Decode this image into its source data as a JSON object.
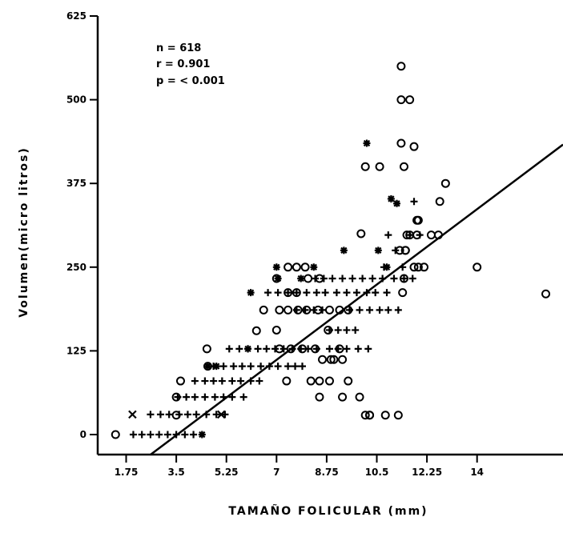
{
  "chart_data": {
    "type": "scatter",
    "title": "",
    "xlabel": "TAMAÑO FOLICULAR (mm)",
    "ylabel": "Volumen(micro litros)",
    "xlim": [
      1.4,
      17.0
    ],
    "ylim": [
      0,
      625
    ],
    "x_ticks": [
      {
        "value": 1.75,
        "label": "1.75"
      },
      {
        "value": 3.5,
        "label": "3.5"
      },
      {
        "value": 5.25,
        "label": "5.25"
      },
      {
        "value": 7,
        "label": "7"
      },
      {
        "value": 8.75,
        "label": "8.75"
      },
      {
        "value": 10.5,
        "label": "10.5"
      },
      {
        "value": 12.25,
        "label": "12.25"
      },
      {
        "value": 14,
        "label": "14"
      }
    ],
    "y_ticks": [
      {
        "value": 0,
        "label": "0"
      },
      {
        "value": 125,
        "label": "125"
      },
      {
        "value": 250,
        "label": "250"
      },
      {
        "value": 375,
        "label": "375"
      },
      {
        "value": 500,
        "label": "500"
      },
      {
        "value": 625,
        "label": "625"
      }
    ],
    "annotations": {
      "n": "n = 618",
      "r": "r = 0.901",
      "p": "p = < 0.001"
    },
    "regression_line": {
      "x": [
        2.6,
        17.0
      ],
      "y": [
        -30,
        433
      ]
    },
    "grid": false,
    "series": [
      {
        "marker": "o",
        "x": [
          1.38,
          3.5,
          3.5,
          3.65,
          4.6,
          4.57,
          6.3,
          6.55,
          7.1,
          7.4,
          7.75,
          8.05,
          8.45,
          8.85,
          9.2,
          9.5,
          7.4,
          7.7,
          8.5,
          8.1,
          7.0,
          7.4,
          7.7,
          8.0,
          7.0,
          8.8,
          7.1,
          7.5,
          7.9,
          8.35,
          9.2,
          8.6,
          8.9,
          9.0,
          9.3,
          7.35,
          8.2,
          8.5,
          8.85,
          9.5,
          8.5,
          9.3,
          9.9,
          10.1,
          10.25,
          10.25,
          10.8,
          11.25,
          11.4,
          11.45,
          11.8,
          11.95,
          12.15,
          11.3,
          11.5,
          11.5,
          11.55,
          11.65,
          11.9,
          11.9,
          11.95,
          12.4,
          12.65,
          12.7,
          12.9,
          14.0,
          16.4,
          11.35,
          11.35,
          11.65,
          11.8,
          10.1,
          10.6,
          11.45,
          11.35,
          9.95
        ],
        "y": [
          0,
          29,
          56,
          80,
          102,
          128,
          155,
          186,
          186,
          186,
          186,
          186,
          186,
          186,
          186,
          186,
          212,
          212,
          233,
          233,
          233,
          250,
          250,
          250,
          156,
          156,
          128,
          128,
          128,
          128,
          128,
          112,
          112,
          112,
          112,
          80,
          80,
          80,
          80,
          80,
          56,
          56,
          56,
          29,
          29,
          29,
          29,
          29,
          212,
          233,
          250,
          250,
          250,
          275,
          275,
          275,
          298,
          298,
          298,
          320,
          320,
          298,
          298,
          348,
          375,
          250,
          210,
          550,
          500,
          500,
          430,
          400,
          400,
          400,
          435,
          300
        ]
      },
      {
        "marker": "+",
        "x": [
          2.0,
          2.3,
          2.6,
          2.9,
          3.2,
          3.5,
          3.8,
          4.1,
          2.6,
          2.95,
          3.25,
          3.6,
          3.9,
          4.2,
          4.55,
          4.9,
          5.2,
          3.55,
          3.85,
          4.15,
          4.5,
          4.85,
          5.15,
          5.45,
          5.85,
          4.15,
          4.5,
          4.8,
          5.1,
          5.45,
          5.75,
          6.1,
          6.4,
          4.8,
          5.15,
          5.5,
          5.8,
          6.1,
          6.45,
          6.75,
          7.05,
          7.4,
          7.65,
          7.9,
          5.35,
          5.7,
          6.0,
          6.35,
          6.65,
          6.95,
          7.25,
          7.55,
          7.85,
          8.1,
          8.4,
          8.85,
          9.15,
          9.45,
          9.85,
          10.2,
          8.85,
          9.15,
          9.45,
          9.75,
          7.7,
          8.0,
          8.3,
          8.6,
          9.55,
          9.9,
          10.25,
          10.6,
          10.9,
          11.25,
          6.7,
          7.05,
          7.4,
          7.7,
          8.05,
          8.4,
          8.7,
          9.1,
          9.45,
          9.8,
          10.15,
          10.45,
          10.85,
          8.35,
          8.65,
          8.95,
          9.3,
          9.65,
          10.0,
          10.35,
          10.7,
          11.1,
          11.45,
          11.75,
          10.75,
          11.4,
          11.15,
          10.9,
          11.65,
          12.0,
          11.8
        ],
        "y": [
          0,
          0,
          0,
          0,
          0,
          0,
          0,
          0,
          30,
          30,
          30,
          30,
          30,
          30,
          30,
          30,
          30,
          56,
          56,
          56,
          56,
          56,
          56,
          56,
          56,
          80,
          80,
          80,
          80,
          80,
          80,
          80,
          80,
          102,
          102,
          102,
          102,
          102,
          102,
          102,
          102,
          102,
          102,
          102,
          128,
          128,
          128,
          128,
          128,
          128,
          128,
          128,
          128,
          128,
          128,
          128,
          128,
          128,
          128,
          128,
          156,
          156,
          156,
          156,
          186,
          186,
          186,
          186,
          186,
          186,
          186,
          186,
          186,
          186,
          212,
          212,
          212,
          212,
          212,
          212,
          212,
          212,
          212,
          212,
          212,
          212,
          212,
          233,
          233,
          233,
          233,
          233,
          233,
          233,
          233,
          233,
          233,
          233,
          250,
          250,
          275,
          298,
          298,
          298,
          348
        ]
      },
      {
        "marker": "x",
        "x": [
          1.97,
          5.07
        ],
        "y": [
          30,
          30
        ]
      },
      {
        "marker": "*",
        "x": [
          4.4,
          4.6,
          4.9,
          6.0,
          6.1,
          7.05,
          7.0,
          7.85,
          8.3,
          9.35,
          10.15,
          10.85,
          10.55,
          11.2,
          11.0
        ],
        "y": [
          0,
          102,
          102,
          128,
          212,
          233,
          250,
          233,
          250,
          275,
          435,
          250,
          275,
          345,
          352
        ]
      }
    ]
  }
}
